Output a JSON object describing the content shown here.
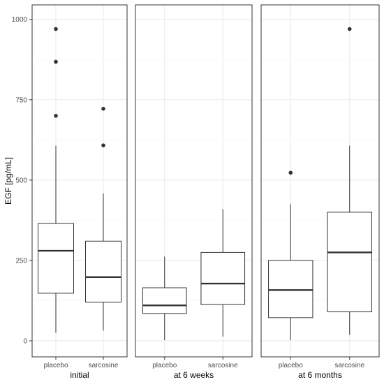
{
  "chart_data": {
    "type": "boxplot",
    "ylabel": "EGF [pg/mL]",
    "ylim": [
      -50,
      1045
    ],
    "yticks": [
      0,
      250,
      500,
      750,
      1000
    ],
    "categories": [
      "placebo",
      "sarcosine"
    ],
    "panels": [
      {
        "name": "initial",
        "boxes": [
          {
            "category": "placebo",
            "whisker_low": 25,
            "q1": 148,
            "median": 280,
            "q3": 365,
            "whisker_high": 607,
            "outliers": [
              700,
              868,
              970
            ]
          },
          {
            "category": "sarcosine",
            "whisker_low": 32,
            "q1": 120,
            "median": 198,
            "q3": 310,
            "whisker_high": 458,
            "outliers": [
              608,
              722
            ]
          }
        ]
      },
      {
        "name": "at 6 weeks",
        "boxes": [
          {
            "category": "placebo",
            "whisker_low": 2,
            "q1": 85,
            "median": 110,
            "q3": 165,
            "whisker_high": 262,
            "outliers": []
          },
          {
            "category": "sarcosine",
            "whisker_low": 13,
            "q1": 113,
            "median": 178,
            "q3": 275,
            "whisker_high": 410,
            "outliers": []
          }
        ]
      },
      {
        "name": "at 6 months",
        "boxes": [
          {
            "category": "placebo",
            "whisker_low": 2,
            "q1": 72,
            "median": 158,
            "q3": 250,
            "whisker_high": 425,
            "outliers": [
              523
            ]
          },
          {
            "category": "sarcosine",
            "whisker_low": 18,
            "q1": 90,
            "median": 275,
            "q3": 400,
            "whisker_high": 607,
            "outliers": [
              970
            ]
          }
        ]
      }
    ],
    "grid": true,
    "colors": {
      "panel_border": "#333333",
      "grid_major": "#ebebeb",
      "grid_minor": "#f5f5f5",
      "box_line": "#333333",
      "tick_text": "#4d4d4d"
    }
  }
}
